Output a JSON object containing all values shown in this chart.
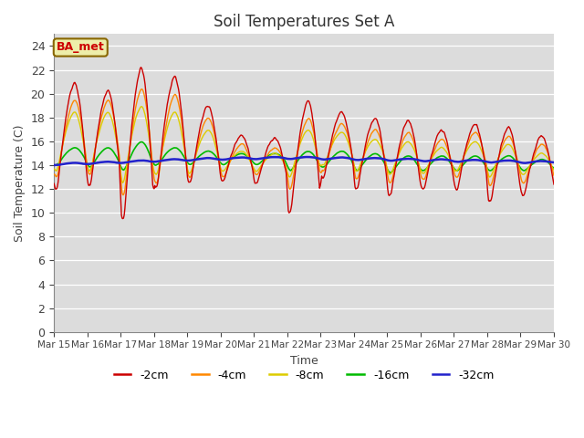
{
  "title": "Soil Temperatures Set A",
  "xlabel": "Time",
  "ylabel": "Soil Temperature (C)",
  "ylim": [
    0,
    25
  ],
  "yticks": [
    0,
    2,
    4,
    6,
    8,
    10,
    12,
    14,
    16,
    18,
    20,
    22,
    24
  ],
  "x_labels": [
    "Mar 15",
    "Mar 16",
    "Mar 17",
    "Mar 18",
    "Mar 19",
    "Mar 20",
    "Mar 21",
    "Mar 22",
    "Mar 23",
    "Mar 24",
    "Mar 25",
    "Mar 26",
    "Mar 27",
    "Mar 28",
    "Mar 29",
    "Mar 30"
  ],
  "bg_color": "#dcdcdc",
  "grid_color": "#ffffff",
  "colors": {
    "-2cm": "#cc0000",
    "-4cm": "#ff8800",
    "-8cm": "#ddcc00",
    "-16cm": "#00bb00",
    "-32cm": "#2222cc"
  },
  "legend_label": "BA_met",
  "legend_box_facecolor": "#eeeeaa",
  "legend_box_edgecolor": "#886600",
  "daily_peaks_2cm": [
    21.0,
    20.3,
    22.3,
    21.5,
    19.0,
    16.5,
    16.3,
    19.5,
    18.5,
    18.0,
    17.8,
    17.0,
    17.5,
    17.2,
    16.5,
    16.5
  ],
  "daily_lows_2cm": [
    12.0,
    12.3,
    9.5,
    12.2,
    12.5,
    12.7,
    12.5,
    10.0,
    13.0,
    12.0,
    11.5,
    12.0,
    12.0,
    11.0,
    11.5,
    12.0
  ],
  "daily_peaks_4cm": [
    19.5,
    19.5,
    20.5,
    20.0,
    18.0,
    15.8,
    15.5,
    18.0,
    17.5,
    17.0,
    16.8,
    16.2,
    16.8,
    16.5,
    15.8,
    15.8
  ],
  "daily_lows_4cm": [
    13.0,
    13.2,
    11.5,
    12.5,
    13.0,
    13.0,
    13.2,
    12.0,
    13.5,
    12.8,
    12.5,
    12.8,
    13.0,
    12.3,
    12.5,
    13.0
  ],
  "daily_peaks_8cm": [
    18.5,
    18.5,
    19.0,
    18.5,
    17.0,
    15.2,
    15.0,
    17.0,
    16.8,
    16.2,
    16.0,
    15.5,
    16.0,
    15.8,
    15.0,
    15.2
  ],
  "daily_lows_8cm": [
    13.5,
    13.5,
    12.5,
    13.2,
    13.3,
    13.5,
    13.5,
    13.0,
    14.0,
    13.5,
    13.2,
    13.3,
    13.5,
    13.0,
    13.2,
    13.5
  ],
  "daily_peaks_16cm": [
    15.5,
    15.5,
    16.0,
    15.5,
    15.2,
    15.0,
    15.0,
    15.2,
    15.2,
    15.0,
    14.8,
    14.8,
    14.8,
    14.8,
    14.5,
    14.5
  ],
  "daily_lows_16cm": [
    14.0,
    13.8,
    13.5,
    14.0,
    14.0,
    14.0,
    14.0,
    13.5,
    13.8,
    13.5,
    13.3,
    13.5,
    13.5,
    13.5,
    13.5,
    14.0
  ],
  "base_32cm": [
    14.0,
    14.1,
    14.2,
    14.3,
    14.4,
    14.45,
    14.5,
    14.5,
    14.45,
    14.4,
    14.35,
    14.3,
    14.25,
    14.2,
    14.15,
    14.1
  ]
}
